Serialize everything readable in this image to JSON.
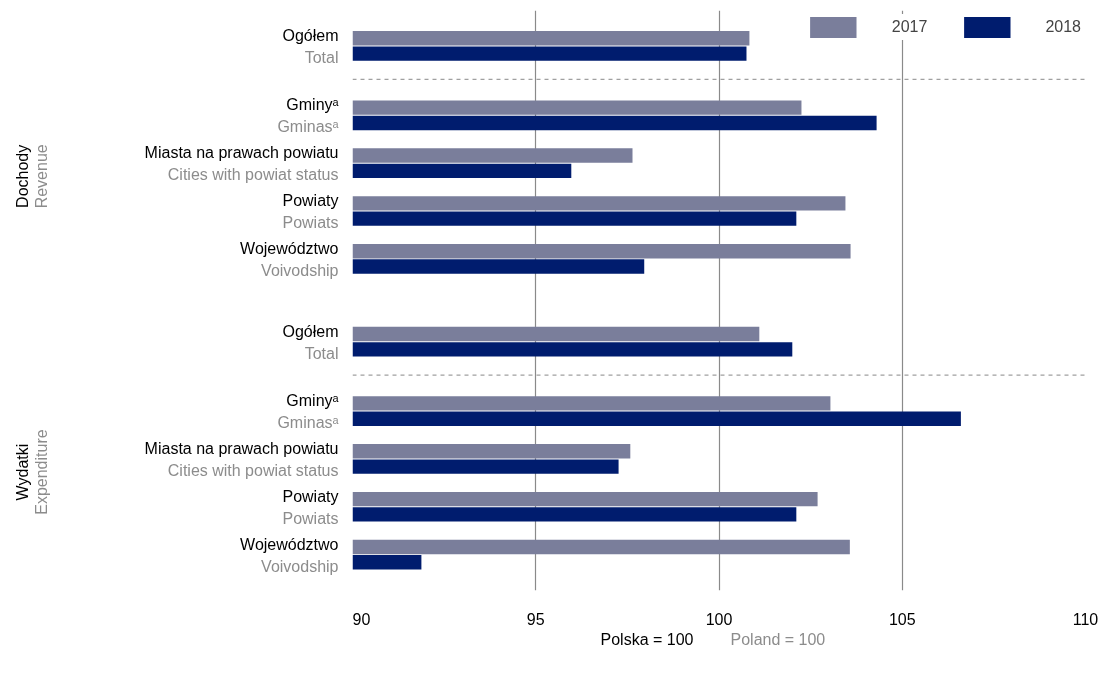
{
  "chart_data": {
    "type": "bar",
    "orientation": "horizontal",
    "categories": [
      "Ogółem\nTotal",
      "Gminyᵃ\nGminasᵃ",
      "Miasta na prawach powiatu\nCities with powiat status",
      "Powiaty\nPowiats",
      "Województwo\nVoivodship",
      "Ogółem\nTotal",
      "Gminyᵃ\nGminasᵃ",
      "Miasta na prawach powiatu\nCities with powiat status",
      "Powiaty\nPowiats",
      "Województwo\nVoivodship"
    ],
    "series": [
      {
        "name": "2017",
        "color": "#7a7e9b",
        "values": [
          100.83,
          102.25,
          97.64,
          103.45,
          103.59,
          101.1,
          103.04,
          97.58,
          102.69,
          103.57
        ]
      },
      {
        "name": "2018",
        "color": "#001c6e",
        "values": [
          100.75,
          104.3,
          95.97,
          102.11,
          97.96,
          102.0,
          106.6,
          97.26,
          102.11,
          91.88
        ]
      }
    ],
    "xlim": [
      90,
      110
    ],
    "xticks": [
      90,
      95,
      100,
      105,
      110
    ],
    "grid": "x",
    "legend": "top right",
    "annotations": [
      "Dochody\nRevenue",
      "Wydatki\nExpenditure",
      "Polska  = 100\nPoland = 100"
    ]
  }
}
